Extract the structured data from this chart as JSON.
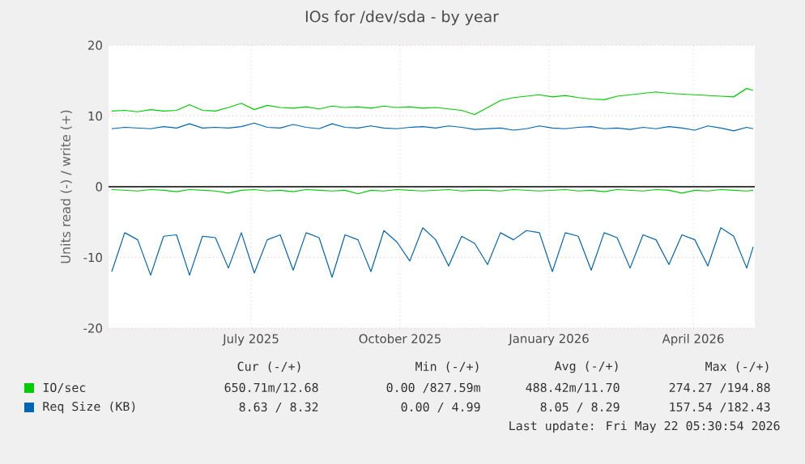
{
  "chart_data": {
    "type": "line",
    "title": "IOs for /dev/sda - by year",
    "ylabel": "Units read (-) / write (+)",
    "x": [
      "2025-04-21",
      "2025-04-29",
      "2025-05-07",
      "2025-05-15",
      "2025-05-23",
      "2025-05-31",
      "2025-06-08",
      "2025-06-16",
      "2025-06-24",
      "2025-07-02",
      "2025-07-10",
      "2025-07-18",
      "2025-07-26",
      "2025-08-03",
      "2025-08-11",
      "2025-08-19",
      "2025-08-27",
      "2025-09-04",
      "2025-09-12",
      "2025-09-20",
      "2025-09-28",
      "2025-10-06",
      "2025-10-14",
      "2025-10-22",
      "2025-10-30",
      "2025-11-07",
      "2025-11-15",
      "2025-11-23",
      "2025-12-01",
      "2025-12-09",
      "2025-12-17",
      "2025-12-25",
      "2026-01-02",
      "2026-01-10",
      "2026-01-18",
      "2026-01-26",
      "2026-02-03",
      "2026-02-11",
      "2026-02-19",
      "2026-02-27",
      "2026-03-07",
      "2026-03-15",
      "2026-03-23",
      "2026-03-31",
      "2026-04-08",
      "2026-04-16",
      "2026-04-24",
      "2026-05-02",
      "2026-05-10",
      "2026-05-18",
      "2026-05-22"
    ],
    "series": [
      {
        "name": "IO/sec",
        "color": "#00cc00",
        "values": [
          10.7,
          10.8,
          10.6,
          10.9,
          10.7,
          10.8,
          11.6,
          10.8,
          10.7,
          11.2,
          11.8,
          10.9,
          11.5,
          11.2,
          11.1,
          11.3,
          11.0,
          11.4,
          11.2,
          11.3,
          11.1,
          11.4,
          11.2,
          11.3,
          11.1,
          11.2,
          11.0,
          10.8,
          10.2,
          11.2,
          12.2,
          12.6,
          12.8,
          13.0,
          12.7,
          12.9,
          12.6,
          12.4,
          12.3,
          12.8,
          13.0,
          13.2,
          13.4,
          13.2,
          13.1,
          13.0,
          12.9,
          12.8,
          12.7,
          13.9,
          13.6
        ]
      },
      {
        "color": "#00cc00",
        "values": [
          -0.4,
          -0.5,
          -0.6,
          -0.4,
          -0.5,
          -0.7,
          -0.4,
          -0.5,
          -0.6,
          -0.9,
          -0.5,
          -0.4,
          -0.6,
          -0.5,
          -0.7,
          -0.4,
          -0.5,
          -0.6,
          -0.5,
          -1.0,
          -0.5,
          -0.6,
          -0.4,
          -0.5,
          -0.6,
          -0.5,
          -0.4,
          -0.6,
          -0.5,
          -0.5,
          -0.6,
          -0.4,
          -0.5,
          -0.6,
          -0.5,
          -0.4,
          -0.6,
          -0.5,
          -0.7,
          -0.4,
          -0.5,
          -0.6,
          -0.4,
          -0.5,
          -0.9,
          -0.5,
          -0.6,
          -0.4,
          -0.5,
          -0.6,
          -0.5
        ]
      },
      {
        "name": "Req Size (KB)",
        "color": "#0066b3",
        "values": [
          8.2,
          8.4,
          8.3,
          8.2,
          8.5,
          8.3,
          8.9,
          8.3,
          8.4,
          8.3,
          8.5,
          9.0,
          8.4,
          8.3,
          8.8,
          8.4,
          8.2,
          8.9,
          8.4,
          8.3,
          8.6,
          8.3,
          8.2,
          8.4,
          8.5,
          8.3,
          8.6,
          8.4,
          8.1,
          8.2,
          8.3,
          8.0,
          8.2,
          8.6,
          8.3,
          8.2,
          8.4,
          8.5,
          8.2,
          8.3,
          8.1,
          8.4,
          8.2,
          8.5,
          8.3,
          8.0,
          8.6,
          8.3,
          7.9,
          8.4,
          8.2
        ]
      },
      {
        "color": "#0066b3",
        "values": [
          -12.0,
          -6.5,
          -7.5,
          -12.5,
          -7.0,
          -6.8,
          -12.5,
          -7.0,
          -7.2,
          -11.5,
          -6.5,
          -12.2,
          -7.5,
          -6.8,
          -11.8,
          -6.5,
          -7.2,
          -12.8,
          -6.8,
          -7.5,
          -12.0,
          -6.2,
          -7.8,
          -10.5,
          -5.8,
          -7.5,
          -11.2,
          -7.0,
          -8.0,
          -11.0,
          -6.5,
          -7.5,
          -6.2,
          -6.5,
          -12.0,
          -6.5,
          -7.0,
          -11.8,
          -6.5,
          -7.2,
          -11.5,
          -6.8,
          -7.5,
          -11.0,
          -6.8,
          -7.5,
          -11.2,
          -5.8,
          -7.0,
          -11.5,
          -8.5
        ]
      }
    ],
    "xlim": [
      "2025-04-19",
      "2026-05-23"
    ],
    "xticks": [
      {
        "value": "2025-07-16",
        "label": "July 2025"
      },
      {
        "value": "2025-10-16",
        "label": "October 2025"
      },
      {
        "value": "2026-01-16",
        "label": "January 2026"
      },
      {
        "value": "2026-04-15",
        "label": "April 2026"
      }
    ],
    "ylim": [
      -20,
      20
    ],
    "yticks": [
      -20,
      -10,
      0,
      10,
      20
    ],
    "ref_lines": [
      {
        "axis": "y",
        "value": 0,
        "color": "#000000"
      }
    ],
    "grid": true,
    "legend": "bottom",
    "marker": "none",
    "line_style": "solid",
    "annotations": [
      "Cur (-/+)",
      "Min (-/+)",
      "Avg (-/+)",
      "Max (-/+)",
      "650.71m/12.68",
      "0.00 /827.59m",
      "488.42m/11.70",
      "274.27 /194.88",
      "8.63 / 8.32",
      "0.00 / 4.99",
      "8.05 / 8.29",
      "157.54 /182.43",
      "Last update: Fri May 22 05:30:54 2026"
    ]
  }
}
